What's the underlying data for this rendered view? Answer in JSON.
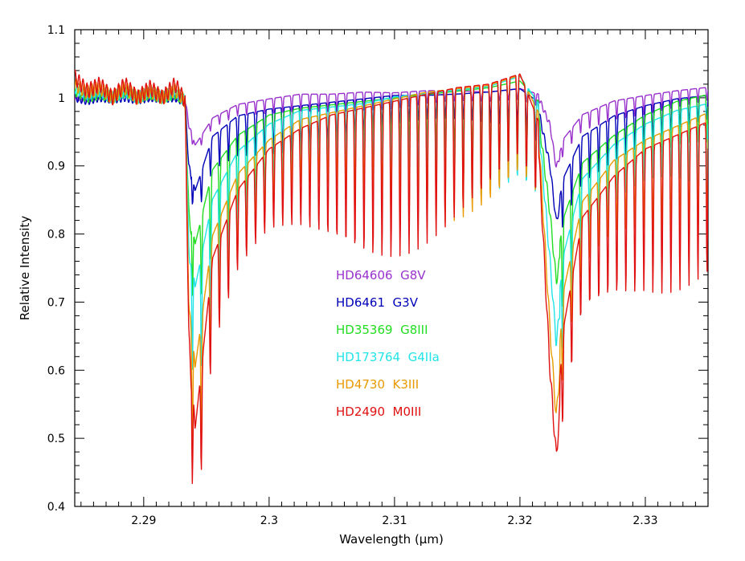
{
  "chart_data": {
    "type": "line",
    "title": "",
    "xlabel": "Wavelength (μm)",
    "ylabel": "Relative Intensity",
    "xlim": [
      2.2845,
      2.335
    ],
    "ylim": [
      0.4,
      1.1
    ],
    "x_ticks": [
      2.29,
      2.3,
      2.31,
      2.32,
      2.33
    ],
    "x_tick_labels": [
      "2.29",
      "2.3",
      "2.31",
      "2.32",
      "2.33"
    ],
    "y_ticks": [
      0.4,
      0.5,
      0.6,
      0.7,
      0.8,
      0.9,
      1.0,
      1.1
    ],
    "y_tick_labels": [
      "0.4",
      "0.5",
      "0.6",
      "0.7",
      "0.8",
      "0.9",
      "1",
      "1.1"
    ],
    "grid": false,
    "legend_placement": "center",
    "series": [
      {
        "name": "HD64606  G8V",
        "color": "#9932cc",
        "x": [
          2.2845,
          2.2855,
          2.2865,
          2.2875,
          2.2885,
          2.2895,
          2.2905,
          2.2915,
          2.2925,
          2.2933,
          2.2936,
          2.2941,
          2.2955,
          2.2975,
          2.3,
          2.3025,
          2.305,
          2.3075,
          2.31,
          2.3125,
          2.315,
          2.3175,
          2.32,
          2.3215,
          2.3224,
          2.3229,
          2.3235,
          2.325,
          2.3275,
          2.33,
          2.3325,
          2.335
        ],
        "y": [
          1.0,
          0.998,
          1.002,
          1.0,
          1.005,
          1.002,
          1.0,
          1.003,
          1.0,
          0.997,
          0.96,
          0.925,
          0.965,
          0.985,
          0.993,
          1.0,
          1.0,
          1.003,
          1.002,
          1.005,
          1.005,
          1.003,
          1.008,
          1.0,
          0.96,
          0.897,
          0.935,
          0.97,
          0.99,
          0.998,
          1.005,
          1.01
        ]
      },
      {
        "name": "HD6461  G3V",
        "color": "#0000b8",
        "x": [
          2.2845,
          2.2855,
          2.2865,
          2.2875,
          2.2885,
          2.2895,
          2.2905,
          2.2915,
          2.2925,
          2.2933,
          2.2936,
          2.2941,
          2.2955,
          2.2975,
          2.3,
          2.3025,
          2.305,
          2.3075,
          2.31,
          2.3125,
          2.315,
          2.3175,
          2.32,
          2.3215,
          2.3224,
          2.3229,
          2.3235,
          2.325,
          2.3275,
          2.33,
          2.3325,
          2.335
        ],
        "y": [
          1.0,
          0.995,
          1.0,
          0.997,
          1.0,
          0.996,
          1.0,
          0.998,
          1.0,
          0.993,
          0.9,
          0.85,
          0.93,
          0.96,
          0.97,
          0.975,
          0.98,
          0.985,
          0.99,
          0.99,
          0.992,
          0.995,
          1.0,
          0.98,
          0.9,
          0.817,
          0.87,
          0.93,
          0.96,
          0.975,
          0.985,
          0.99
        ]
      },
      {
        "name": "HD35369  G8III",
        "color": "#22dd22",
        "x": [
          2.2845,
          2.2855,
          2.2865,
          2.2875,
          2.2885,
          2.2895,
          2.2905,
          2.2915,
          2.2925,
          2.2933,
          2.2936,
          2.2941,
          2.2955,
          2.2975,
          2.3,
          2.3025,
          2.305,
          2.3075,
          2.31,
          2.3125,
          2.315,
          2.3175,
          2.32,
          2.3215,
          2.3224,
          2.3229,
          2.3235,
          2.325,
          2.3275,
          2.33,
          2.3325,
          2.335
        ],
        "y": [
          1.01,
          1.0,
          1.005,
          1.0,
          1.008,
          1.0,
          1.005,
          1.0,
          1.005,
          0.995,
          0.83,
          0.76,
          0.87,
          0.92,
          0.95,
          0.96,
          0.965,
          0.97,
          0.975,
          0.98,
          0.985,
          0.99,
          1.0,
          0.97,
          0.83,
          0.73,
          0.8,
          0.88,
          0.92,
          0.95,
          0.97,
          0.98
        ]
      },
      {
        "name": "HD173764  G4IIa",
        "color": "#22e4e8",
        "x": [
          2.2845,
          2.2855,
          2.2865,
          2.2875,
          2.2885,
          2.2895,
          2.2905,
          2.2915,
          2.2925,
          2.2933,
          2.2936,
          2.2941,
          2.2955,
          2.2975,
          2.3,
          2.3025,
          2.305,
          2.3075,
          2.31,
          2.3125,
          2.315,
          2.3175,
          2.32,
          2.3215,
          2.3224,
          2.3229,
          2.3235,
          2.325,
          2.3275,
          2.33,
          2.3325,
          2.335
        ],
        "y": [
          1.015,
          1.005,
          1.01,
          1.0,
          1.01,
          1.0,
          1.008,
          1.0,
          1.01,
          0.995,
          0.78,
          0.69,
          0.82,
          0.89,
          0.93,
          0.95,
          0.955,
          0.96,
          0.97,
          0.975,
          0.98,
          0.985,
          1.0,
          0.96,
          0.76,
          0.64,
          0.74,
          0.85,
          0.9,
          0.93,
          0.95,
          0.96
        ]
      },
      {
        "name": "HD4730  K3III",
        "color": "#e89a00",
        "x": [
          2.2845,
          2.2855,
          2.2865,
          2.2875,
          2.2885,
          2.2895,
          2.2905,
          2.2915,
          2.2925,
          2.2933,
          2.2936,
          2.2941,
          2.2955,
          2.2975,
          2.3,
          2.3025,
          2.305,
          2.3075,
          2.31,
          2.3125,
          2.315,
          2.3175,
          2.32,
          2.3215,
          2.3224,
          2.3229,
          2.3235,
          2.325,
          2.3275,
          2.33,
          2.3325,
          2.335
        ],
        "y": [
          1.02,
          1.008,
          1.015,
          1.0,
          1.015,
          1.0,
          1.01,
          1.0,
          1.012,
          0.995,
          0.7,
          0.565,
          0.76,
          0.85,
          0.9,
          0.93,
          0.94,
          0.95,
          0.96,
          0.97,
          0.975,
          0.98,
          0.995,
          0.94,
          0.66,
          0.53,
          0.68,
          0.81,
          0.87,
          0.9,
          0.92,
          0.94
        ]
      },
      {
        "name": "HD2490  M0III",
        "color": "#e01010",
        "x": [
          2.2845,
          2.2855,
          2.2865,
          2.2875,
          2.2885,
          2.2895,
          2.2905,
          2.2915,
          2.2925,
          2.2933,
          2.2936,
          2.2941,
          2.2955,
          2.2975,
          2.3,
          2.3025,
          2.305,
          2.3075,
          2.31,
          2.3125,
          2.315,
          2.3175,
          2.32,
          2.3215,
          2.3224,
          2.3229,
          2.3235,
          2.325,
          2.3275,
          2.33,
          2.3325,
          2.335
        ],
        "y": [
          1.03,
          1.01,
          1.02,
          1.0,
          1.02,
          1.0,
          1.015,
          1.0,
          1.02,
          0.995,
          0.65,
          0.468,
          0.72,
          0.82,
          0.88,
          0.91,
          0.93,
          0.94,
          0.95,
          0.96,
          0.97,
          0.975,
          0.99,
          0.92,
          0.6,
          0.472,
          0.62,
          0.78,
          0.84,
          0.88,
          0.9,
          0.92
        ]
      }
    ]
  }
}
